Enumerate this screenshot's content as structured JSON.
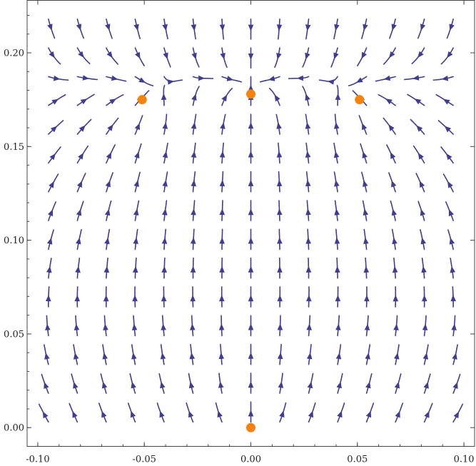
{
  "chart_data": {
    "type": "scatter",
    "subtype": "stream-plot",
    "title": "",
    "xlabel": "",
    "ylabel": "",
    "xlim": [
      -0.105,
      0.105
    ],
    "ylim": [
      -0.01,
      0.228
    ],
    "x_ticks": [
      -0.1,
      -0.05,
      0.0,
      0.05,
      0.1
    ],
    "x_tick_labels": [
      "-0.10",
      "-0.05",
      "0.00",
      "0.05",
      "0.10"
    ],
    "y_ticks": [
      0.0,
      0.05,
      0.1,
      0.15,
      0.2
    ],
    "y_tick_labels": [
      "0.00",
      "0.05",
      "0.10",
      "0.15",
      "0.20"
    ],
    "grid": false,
    "stream_color": "#3f3d8f",
    "point_color": "#f5820d",
    "fixed_points": [
      {
        "x": 0.0,
        "y": 0.0
      },
      {
        "x": -0.051,
        "y": 0.175
      },
      {
        "x": 0.0,
        "y": 0.178
      },
      {
        "x": 0.051,
        "y": 0.175
      }
    ]
  }
}
